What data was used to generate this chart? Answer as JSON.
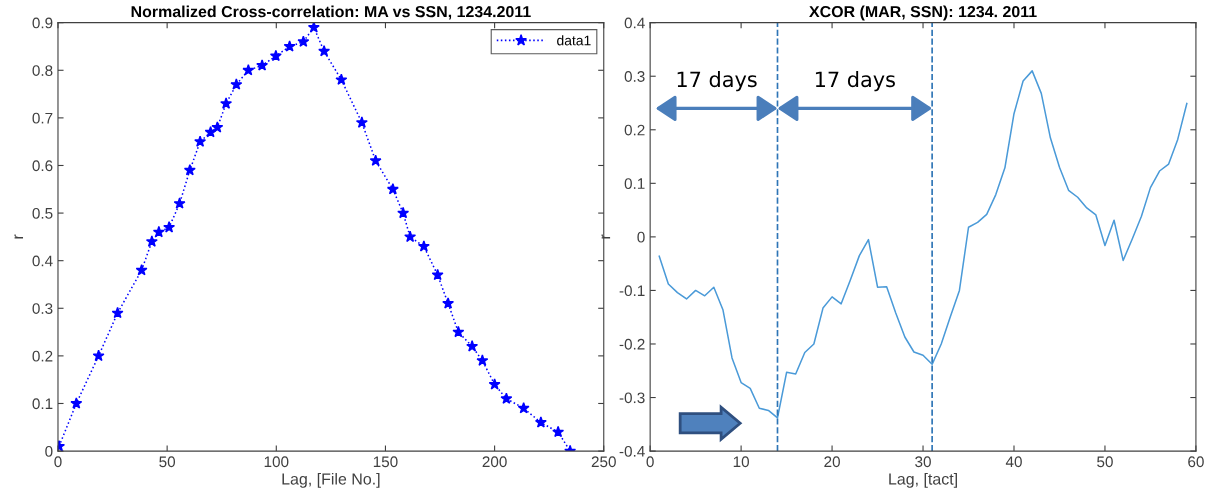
{
  "chart_data": [
    {
      "type": "line",
      "title": "Normalized Cross-correlation: MA vs SSN, 1234.2011",
      "xlabel": "Lag, [File No.]",
      "ylabel": "r",
      "xlim": [
        0,
        250
      ],
      "xticks": [
        0,
        50,
        100,
        150,
        200,
        250
      ],
      "ylim": [
        0,
        0.9
      ],
      "yticks": [
        0,
        0.1,
        0.2,
        0.3,
        0.4,
        0.5,
        0.6,
        0.7,
        0.8,
        0.9
      ],
      "grid": false,
      "legend": "top right",
      "marker": "star",
      "line_style": "dotted",
      "series": [
        {
          "name": "data1",
          "color": "#0000ff",
          "x": [
            0.5,
            8.4,
            18.6,
            27.3,
            38.3,
            43,
            46.2,
            50.9,
            55.7,
            60.4,
            65.1,
            69.9,
            73,
            77,
            81.7,
            87.2,
            93.5,
            99.8,
            106.1,
            112.4,
            117.2,
            121.9,
            129.8,
            139.2,
            145.5,
            153.4,
            158.1,
            161.3,
            167.6,
            173.9,
            178.7,
            183.4,
            189.7,
            194.4,
            200,
            205.4,
            213.3,
            221.2,
            229.1,
            234.6
          ],
          "values": [
            0.01,
            0.1,
            0.2,
            0.29,
            0.38,
            0.44,
            0.46,
            0.47,
            0.52,
            0.59,
            0.65,
            0.67,
            0.68,
            0.73,
            0.77,
            0.8,
            0.81,
            0.83,
            0.85,
            0.86,
            0.89,
            0.84,
            0.78,
            0.69,
            0.61,
            0.55,
            0.5,
            0.45,
            0.43,
            0.37,
            0.31,
            0.25,
            0.22,
            0.19,
            0.14,
            0.11,
            0.09,
            0.06,
            0.04,
            0.0
          ]
        }
      ]
    },
    {
      "type": "line",
      "title": "XCOR (MAR, SSN): 1234. 2011",
      "xlabel": "Lag, [tact]",
      "ylabel": "r",
      "xlim": [
        0,
        60
      ],
      "xticks": [
        0,
        10,
        20,
        30,
        40,
        50,
        60
      ],
      "ylim": [
        -0.4,
        0.4
      ],
      "yticks": [
        -0.4,
        -0.3,
        -0.2,
        -0.1,
        0,
        0.1,
        0.2,
        0.3,
        0.4
      ],
      "grid": false,
      "legend": false,
      "marker": "none",
      "line_style": "solid",
      "x": [
        1,
        2,
        3,
        4,
        5,
        6,
        7,
        8,
        9,
        10,
        11,
        12,
        13,
        14,
        15,
        16,
        17,
        18,
        19,
        20,
        21,
        22,
        23,
        24,
        25,
        26,
        27,
        28,
        29,
        30,
        31,
        32,
        33,
        34,
        35,
        36,
        37,
        38,
        39,
        40,
        41,
        42,
        43,
        44,
        45,
        46,
        47,
        48,
        49,
        50,
        51,
        52,
        53,
        54,
        55,
        56,
        57,
        58,
        59
      ],
      "series": [
        {
          "color": "#4a9ad8",
          "values": [
            -0.036,
            -0.088,
            -0.104,
            -0.116,
            -0.1,
            -0.11,
            -0.094,
            -0.136,
            -0.226,
            -0.272,
            -0.283,
            -0.32,
            -0.324,
            -0.338,
            -0.253,
            -0.256,
            -0.216,
            -0.2,
            -0.133,
            -0.112,
            -0.125,
            -0.081,
            -0.035,
            -0.005,
            -0.094,
            -0.093,
            -0.142,
            -0.187,
            -0.215,
            -0.221,
            -0.238,
            -0.2,
            -0.149,
            -0.1,
            0.018,
            0.027,
            0.042,
            0.079,
            0.129,
            0.23,
            0.291,
            0.31,
            0.268,
            0.185,
            0.13,
            0.087,
            0.074,
            0.054,
            0.041,
            -0.016,
            0.031,
            -0.044,
            -0.004,
            0.038,
            0.092,
            0.123,
            0.136,
            0.182,
            0.249
          ]
        }
      ],
      "ref_lines": [
        {
          "axis": "x",
          "value": 14,
          "color": "#2e75b6",
          "line_style": "dashed"
        },
        {
          "axis": "x",
          "value": 31,
          "color": "#2e75b6",
          "line_style": "dashed"
        }
      ],
      "annotations": [
        "17 days",
        "17 days"
      ]
    }
  ]
}
